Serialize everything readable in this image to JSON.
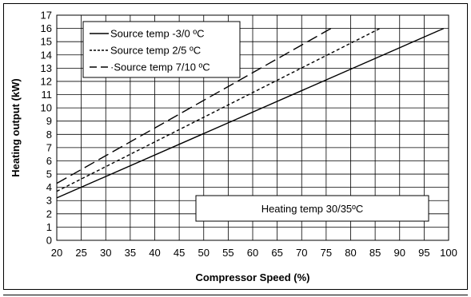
{
  "chart_data": {
    "type": "line",
    "xlabel": "Compressor Speed (%)",
    "ylabel": "Heating output (kW)",
    "xlim": [
      20,
      100
    ],
    "ylim": [
      0,
      17
    ],
    "xticks": [
      20,
      25,
      30,
      35,
      40,
      45,
      50,
      55,
      60,
      65,
      70,
      75,
      80,
      85,
      90,
      95,
      100
    ],
    "yticks": [
      0,
      1,
      2,
      3,
      4,
      5,
      6,
      7,
      8,
      9,
      10,
      11,
      12,
      13,
      14,
      15,
      16,
      17
    ],
    "grid": true,
    "legend_position": "top-left",
    "series": [
      {
        "name": "Source temp -3/0 ºC",
        "dash": "solid",
        "x": [
          20,
          99
        ],
        "y": [
          3.2,
          16
        ]
      },
      {
        "name": "Source temp 2/5 ºC",
        "dash": "dotted",
        "x": [
          20,
          86
        ],
        "y": [
          3.7,
          16
        ]
      },
      {
        "name": "·Source temp 7/10 ºC",
        "dash": "dashed",
        "x": [
          20,
          76
        ],
        "y": [
          4.3,
          16
        ]
      }
    ],
    "annotation": "Heating temp 30/35ºC"
  }
}
